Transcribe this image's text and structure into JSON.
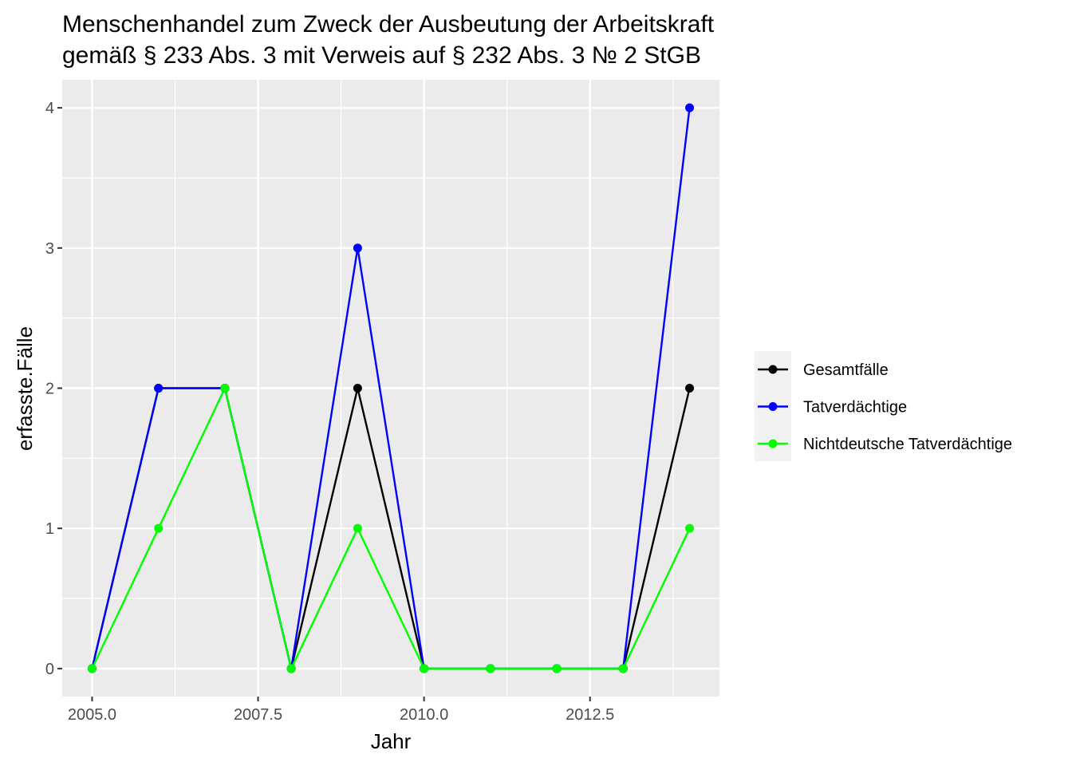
{
  "chart_data": {
    "type": "line",
    "title": [
      "Menschenhandel zum Zweck der Ausbeutung der Arbeitskraft",
      "gemäß § 233 Abs. 3 mit Verweis auf § 232 Abs. 3 № 2 StGB"
    ],
    "xlabel": "Jahr",
    "ylabel": "erfasste.Fälle",
    "x": [
      2005,
      2006,
      2007,
      2008,
      2009,
      2010,
      2011,
      2012,
      2013,
      2014
    ],
    "xlim": [
      2004.55,
      2014.45
    ],
    "ylim": [
      -0.2,
      4.2
    ],
    "x_ticks": [
      2005.0,
      2007.5,
      2010.0,
      2012.5
    ],
    "x_tick_labels": [
      "2005.0",
      "2007.5",
      "2010.0",
      "2012.5"
    ],
    "y_ticks": [
      0,
      1,
      2,
      3,
      4
    ],
    "y_tick_labels": [
      "0",
      "1",
      "2",
      "3",
      "4"
    ],
    "grid": true,
    "legend_position": "right",
    "background": "#ebebeb",
    "series": [
      {
        "name": "Gesamtfälle",
        "color": "#000000",
        "values": [
          0,
          2,
          2,
          0,
          2,
          0,
          0,
          0,
          0,
          2
        ]
      },
      {
        "name": "Tatverdächtige",
        "color": "#0000ff",
        "values": [
          0,
          2,
          2,
          0,
          3,
          0,
          0,
          0,
          0,
          4
        ]
      },
      {
        "name": "Nichtdeutsche Tatverdächtige",
        "color": "#00ff00",
        "values": [
          0,
          1,
          2,
          0,
          1,
          0,
          0,
          0,
          0,
          1
        ]
      }
    ]
  }
}
